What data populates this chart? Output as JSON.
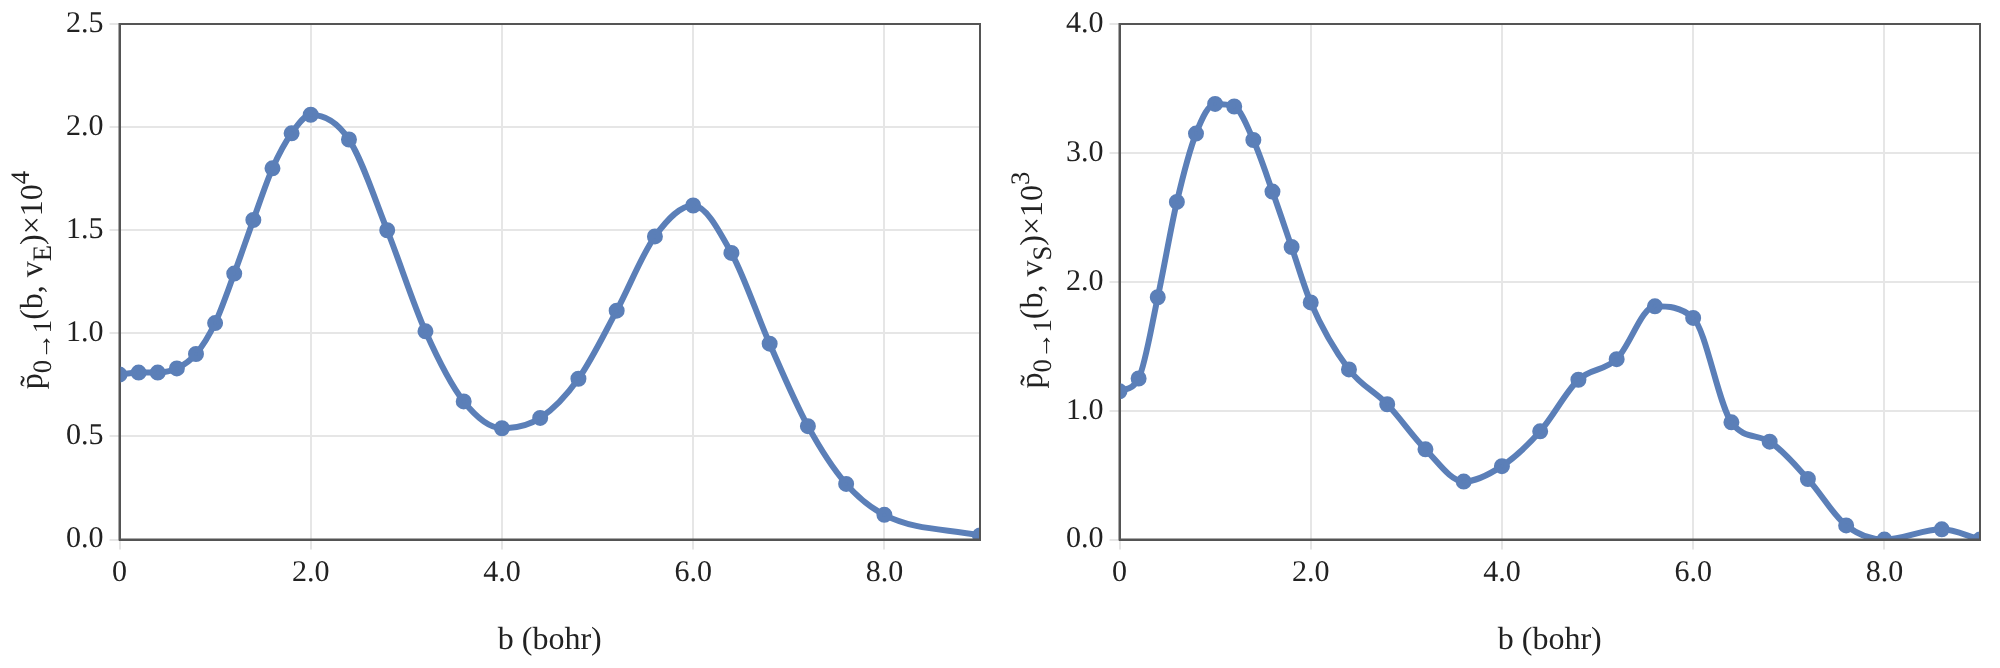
{
  "chart_data": [
    {
      "type": "line",
      "xlabel": "b (bohr)",
      "ylabel": "p̃$_{0→1}$(b, v$_{E}$)×10$^{4}$",
      "marker": "circle",
      "grid": true,
      "xlim": [
        0,
        9
      ],
      "ylim": [
        0,
        2.5
      ],
      "xticks": [
        0,
        {
          "value": 2,
          "label": "2.0"
        },
        {
          "value": 4,
          "label": "4.0"
        },
        {
          "value": 6,
          "label": "6.0"
        },
        {
          "value": 8,
          "label": "8.0"
        }
      ],
      "yticks": [
        {
          "value": 0,
          "label": "0.0"
        },
        {
          "value": 0.5,
          "label": "0.5"
        },
        {
          "value": 1,
          "label": "1.0"
        },
        {
          "value": 1.5,
          "label": "1.5"
        },
        {
          "value": 2,
          "label": "2.0"
        },
        {
          "value": 2.5,
          "label": "2.5"
        }
      ],
      "x": [
        0,
        0.2,
        0.4,
        0.6,
        0.8,
        1.0,
        1.2,
        1.4,
        1.6,
        1.8,
        2.0,
        2.4,
        2.8,
        3.2,
        3.6,
        4.0,
        4.4,
        4.8,
        5.2,
        5.6,
        6.0,
        6.4,
        6.8,
        7.2,
        7.6,
        8.0,
        9.0
      ],
      "series": [
        {
          "color": "#5b7fb8",
          "values": [
            0.8,
            0.81,
            0.81,
            0.83,
            0.9,
            1.05,
            1.29,
            1.55,
            1.8,
            1.97,
            2.06,
            1.94,
            1.5,
            1.01,
            0.67,
            0.54,
            0.59,
            0.78,
            1.11,
            1.47,
            1.62,
            1.39,
            0.95,
            0.55,
            0.27,
            0.12,
            0.02
          ]
        }
      ]
    },
    {
      "type": "line",
      "xlabel": "b (bohr)",
      "ylabel": "p̃$_{0→1}$(b, v$_{S}$)×10$^{3}$",
      "marker": "circle",
      "grid": true,
      "xlim": [
        0,
        9
      ],
      "ylim": [
        0,
        4
      ],
      "xticks": [
        0,
        {
          "value": 2,
          "label": "2.0"
        },
        {
          "value": 4,
          "label": "4.0"
        },
        {
          "value": 6,
          "label": "6.0"
        },
        {
          "value": 8,
          "label": "8.0"
        }
      ],
      "yticks": [
        {
          "value": 0,
          "label": "0.0"
        },
        {
          "value": 1,
          "label": "1.0"
        },
        {
          "value": 2,
          "label": "2.0"
        },
        {
          "value": 3,
          "label": "3.0"
        },
        {
          "value": 4,
          "label": "4.0"
        }
      ],
      "x": [
        0,
        0.2,
        0.4,
        0.6,
        0.8,
        1.0,
        1.2,
        1.4,
        1.6,
        1.8,
        2.0,
        2.4,
        2.8,
        3.2,
        3.6,
        4.0,
        4.4,
        4.8,
        5.2,
        5.6,
        6.0,
        6.4,
        6.8,
        7.2,
        7.6,
        8.0,
        8.6,
        9.0
      ],
      "series": [
        {
          "color": "#5b7fb8",
          "values": [
            1.15,
            1.25,
            1.88,
            2.62,
            3.15,
            3.38,
            3.36,
            3.1,
            2.7,
            2.27,
            1.84,
            1.32,
            1.05,
            0.7,
            0.45,
            0.57,
            0.84,
            1.24,
            1.4,
            1.81,
            1.72,
            0.91,
            0.76,
            0.47,
            0.11,
            0.0,
            0.08,
            0.0
          ]
        }
      ]
    }
  ]
}
